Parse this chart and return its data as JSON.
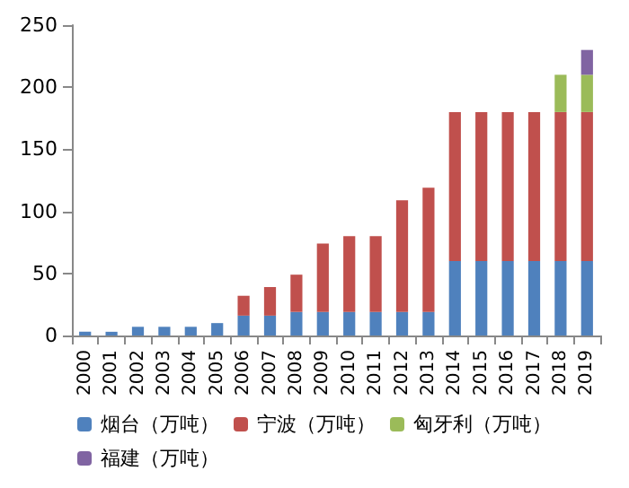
{
  "chart_data": {
    "type": "bar",
    "stacked": true,
    "categories": [
      "2000",
      "2001",
      "2002",
      "2003",
      "2004",
      "2005",
      "2006",
      "2007",
      "2008",
      "2009",
      "2010",
      "2011",
      "2012",
      "2013",
      "2014",
      "2015",
      "2016",
      "2017",
      "2018",
      "2019"
    ],
    "series": [
      {
        "name": "烟台（万吨）",
        "color": "#4f81bd",
        "values": [
          3,
          3,
          7,
          7,
          7,
          10,
          16,
          16,
          19,
          19,
          19,
          19,
          19,
          19,
          60,
          60,
          60,
          60,
          60,
          60
        ]
      },
      {
        "name": "宁波（万吨）",
        "color": "#c0504d",
        "values": [
          null,
          null,
          null,
          null,
          null,
          null,
          16,
          23,
          30,
          55,
          61,
          61,
          90,
          100,
          120,
          120,
          120,
          120,
          120,
          120
        ]
      },
      {
        "name": "匈牙利（万吨）",
        "color": "#9bbb59",
        "values": [
          null,
          null,
          null,
          null,
          null,
          null,
          null,
          null,
          null,
          null,
          null,
          null,
          null,
          null,
          null,
          null,
          null,
          null,
          30,
          30
        ]
      },
      {
        "name": "福建（万吨）",
        "color": "#8064a2",
        "values": [
          null,
          null,
          null,
          null,
          null,
          null,
          null,
          null,
          null,
          null,
          null,
          null,
          null,
          null,
          null,
          null,
          null,
          null,
          null,
          20
        ]
      }
    ],
    "ylim": [
      0,
      250
    ],
    "yticks": [
      0,
      50,
      100,
      150,
      200,
      250
    ],
    "grid": false,
    "legend": "bottom"
  }
}
